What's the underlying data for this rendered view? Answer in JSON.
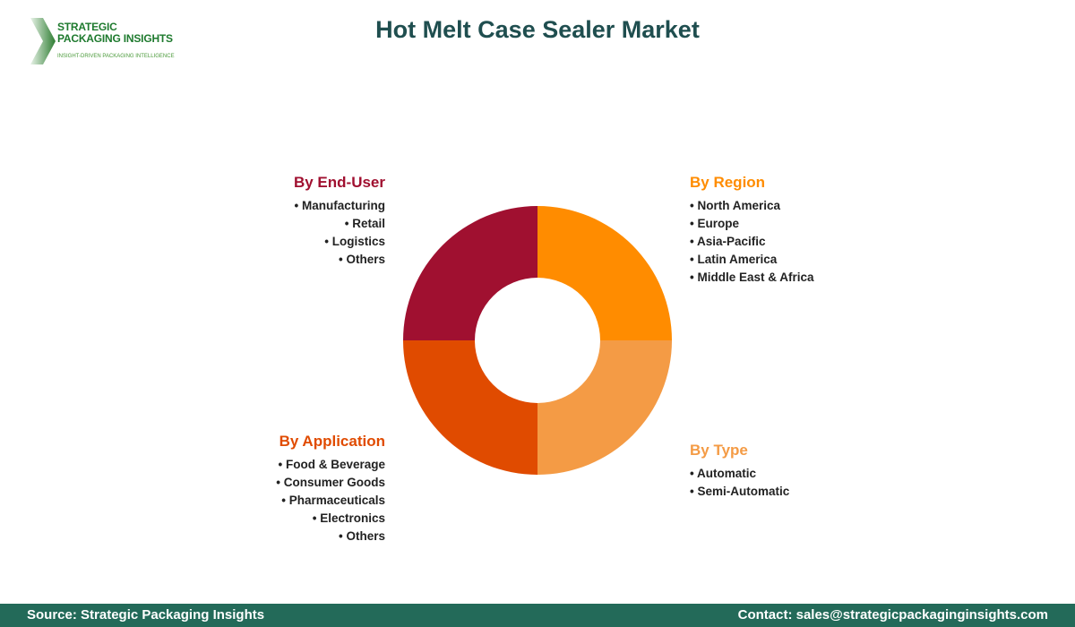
{
  "title": "Hot Melt Case Sealer Market",
  "logo": {
    "name_line1": "STRATEGIC",
    "name_line2": "PACKAGING INSIGHTS",
    "tagline": "INSIGHT-DRIVEN PACKAGING INTELLIGENCE"
  },
  "chart_data": {
    "type": "pie",
    "donut": true,
    "categories": [
      "By Region",
      "By Type",
      "By Application",
      "By End-User"
    ],
    "values": [
      25,
      25,
      25,
      25
    ],
    "colors": [
      "#FF8C00",
      "#F49B45",
      "#E04B00",
      "#A01030"
    ]
  },
  "segments": {
    "region": {
      "title": "By Region",
      "color": "#FF8C00",
      "items": [
        "North America",
        "Europe",
        "Asia-Pacific",
        "Latin America",
        "Middle East & Africa"
      ]
    },
    "type": {
      "title": "By Type",
      "color": "#F49B45",
      "items": [
        "Automatic",
        "Semi-Automatic"
      ]
    },
    "application": {
      "title": "By Application",
      "color": "#E04B00",
      "items": [
        "Food & Beverage",
        "Consumer Goods",
        "Pharmaceuticals",
        "Electronics",
        "Others"
      ]
    },
    "enduser": {
      "title": "By End-User",
      "color": "#A01030",
      "items": [
        "Manufacturing",
        "Retail",
        "Logistics",
        "Others"
      ]
    }
  },
  "footer": {
    "source": "Source: Strategic Packaging Insights",
    "contact": "Contact: sales@strategicpackaginginsights.com"
  }
}
